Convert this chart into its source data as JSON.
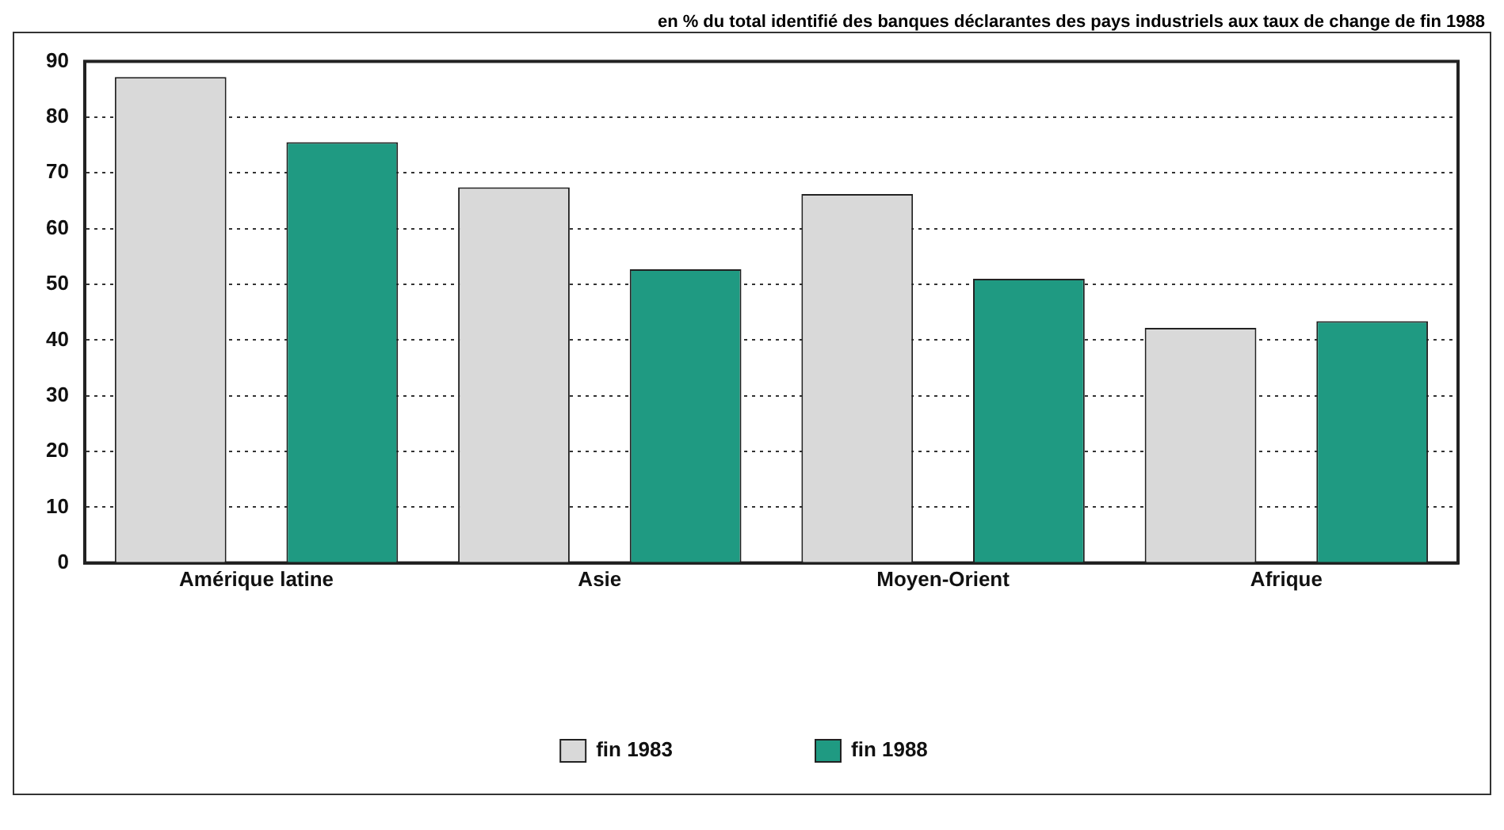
{
  "chart_data": {
    "type": "bar",
    "subtitle": "en % du total identifié des banques déclarantes des pays industriels aux taux de change de fin 1988",
    "categories": [
      "Amérique latine",
      "Asie",
      "Moyen-Orient",
      "Afrique"
    ],
    "series": [
      {
        "name": "fin 1983",
        "color": "#d9d9d9",
        "values": [
          87.2,
          67.4,
          66.2,
          42.2
        ]
      },
      {
        "name": "fin 1988",
        "color": "#1f9a82",
        "values": [
          75.5,
          52.7,
          51,
          43.4
        ]
      }
    ],
    "ylim": [
      0,
      90
    ],
    "yticks": [
      0,
      10,
      20,
      30,
      40,
      50,
      60,
      70,
      80,
      90
    ],
    "grid": "y",
    "legend": "bottom"
  }
}
